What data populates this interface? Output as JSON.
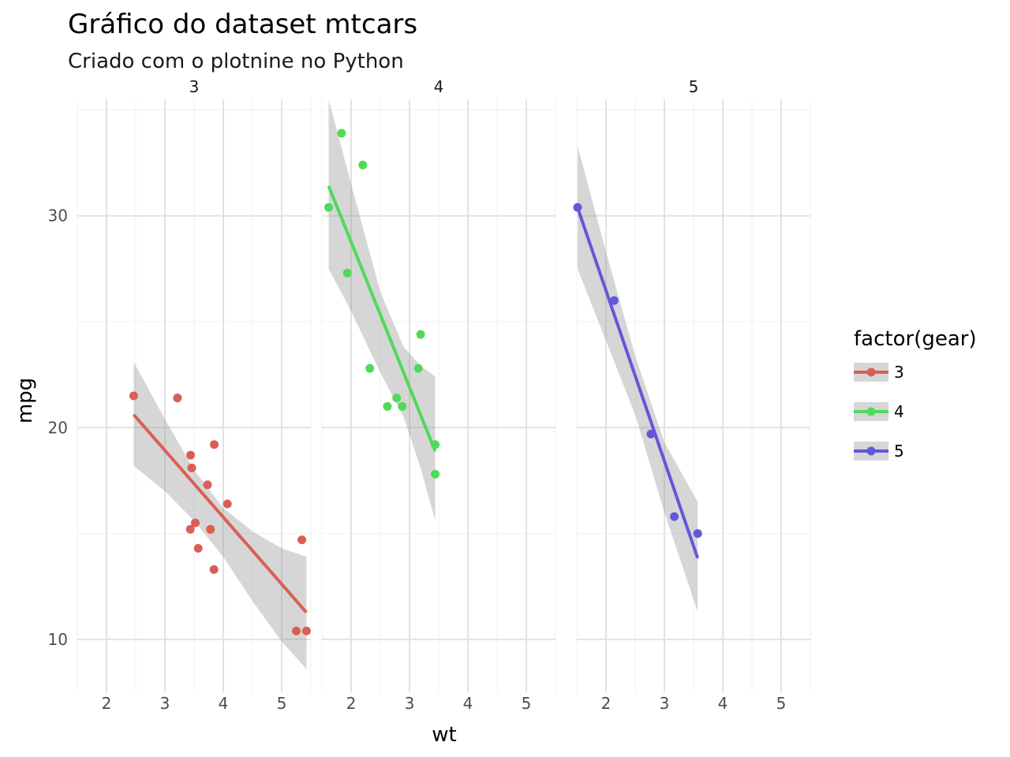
{
  "chart_data": {
    "type": "scatter",
    "title": "Gráfico do dataset mtcars",
    "subtitle": "Criado com o plotnine no Python",
    "xlabel": "wt",
    "ylabel": "mpg",
    "xlim": [
      1.5,
      5.5
    ],
    "ylim": [
      7.5,
      35.5
    ],
    "x_ticks": [
      2,
      3,
      4,
      5
    ],
    "y_ticks": [
      10,
      20,
      30
    ],
    "x_tick_labels": [
      "2",
      "3",
      "4",
      "5"
    ],
    "y_tick_labels": [
      "10",
      "20",
      "30"
    ],
    "grid": true,
    "legend": {
      "title": "factor(gear)",
      "position": "right",
      "entries": [
        "3",
        "4",
        "5"
      ]
    },
    "facets": [
      {
        "label": "3",
        "color": "#d95f55",
        "points": [
          [
            2.465,
            21.5
          ],
          [
            3.215,
            21.4
          ],
          [
            3.44,
            18.7
          ],
          [
            3.46,
            18.1
          ],
          [
            3.57,
            14.3
          ],
          [
            4.07,
            16.4
          ],
          [
            3.73,
            17.3
          ],
          [
            3.78,
            15.2
          ],
          [
            5.25,
            10.4
          ],
          [
            5.424,
            10.4
          ],
          [
            5.345,
            14.7
          ],
          [
            3.52,
            15.5
          ],
          [
            3.435,
            15.2
          ],
          [
            3.84,
            13.3
          ],
          [
            3.845,
            19.2
          ]
        ],
        "fit": {
          "x0": 2.465,
          "x1": 5.424
        },
        "ribbon": [
          [
            2.465,
            23.1,
            18.2
          ],
          [
            3.0,
            20.4,
            17.0
          ],
          [
            3.5,
            18.0,
            15.6
          ],
          [
            4.0,
            16.2,
            13.9
          ],
          [
            4.5,
            15.1,
            11.8
          ],
          [
            5.0,
            14.3,
            9.9
          ],
          [
            5.424,
            13.9,
            8.6
          ]
        ]
      },
      {
        "label": "4",
        "color": "#50d95a",
        "points": [
          [
            2.62,
            21.0
          ],
          [
            2.875,
            21.0
          ],
          [
            2.32,
            22.8
          ],
          [
            3.19,
            24.4
          ],
          [
            3.15,
            22.8
          ],
          [
            3.44,
            19.2
          ],
          [
            3.44,
            17.8
          ],
          [
            2.2,
            32.4
          ],
          [
            1.615,
            30.4
          ],
          [
            1.835,
            33.9
          ],
          [
            1.935,
            27.3
          ],
          [
            2.78,
            21.4
          ]
        ],
        "fit": {
          "x0": 1.615,
          "x1": 3.44
        },
        "ribbon": [
          [
            1.615,
            35.5,
            27.5
          ],
          [
            2.0,
            31.5,
            25.5
          ],
          [
            2.5,
            26.4,
            22.6
          ],
          [
            2.9,
            23.8,
            20.5
          ],
          [
            3.2,
            22.9,
            18.0
          ],
          [
            3.44,
            22.4,
            15.6
          ]
        ]
      },
      {
        "label": "5",
        "color": "#6357d9",
        "points": [
          [
            2.14,
            26.0
          ],
          [
            1.513,
            30.4
          ],
          [
            3.17,
            15.8
          ],
          [
            2.77,
            19.7
          ],
          [
            3.57,
            15.0
          ]
        ],
        "fit": {
          "x0": 1.513,
          "x1": 3.57
        },
        "ribbon": [
          [
            1.513,
            33.3,
            27.5
          ],
          [
            2.0,
            28.3,
            24.1
          ],
          [
            2.5,
            23.4,
            20.6
          ],
          [
            3.0,
            19.3,
            16.0
          ],
          [
            3.57,
            16.5,
            11.3
          ]
        ]
      }
    ]
  }
}
